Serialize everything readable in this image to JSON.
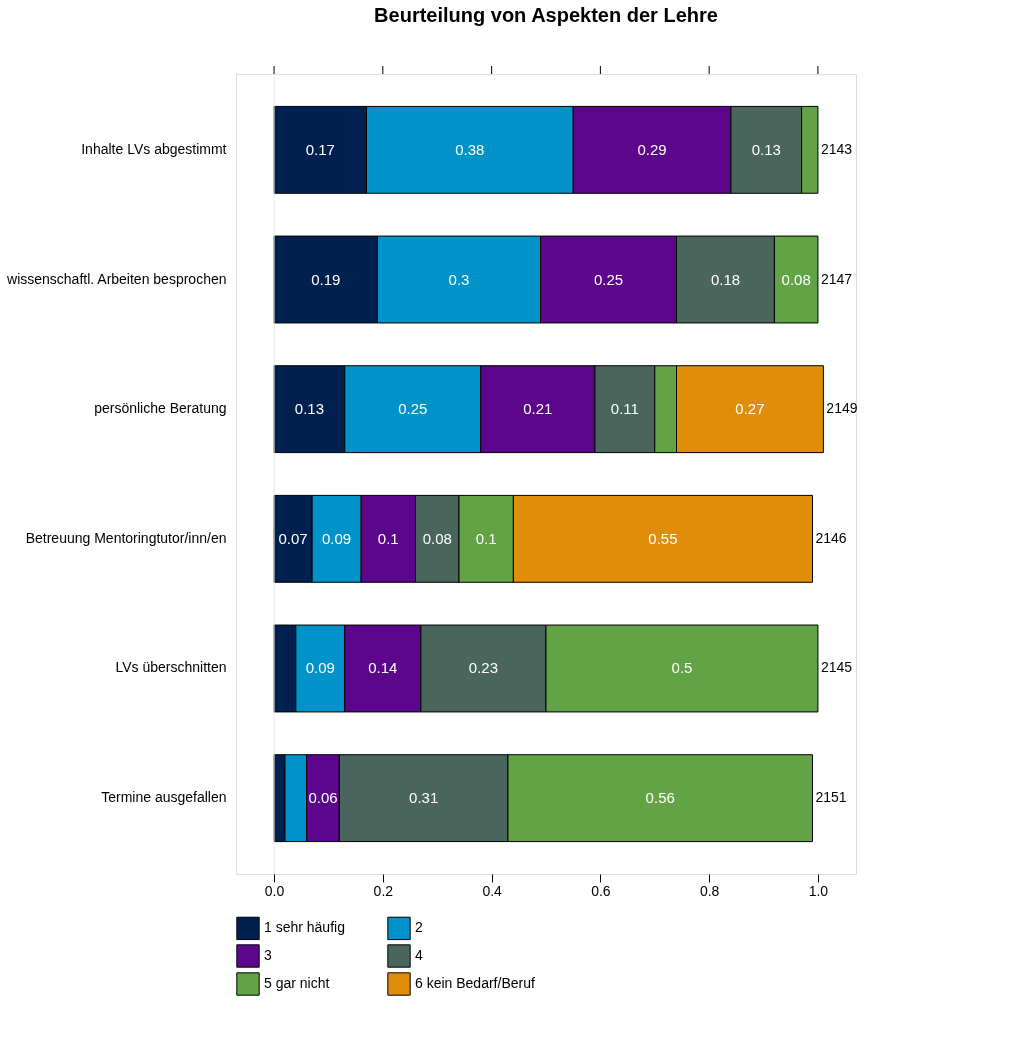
{
  "chart_data": {
    "type": "bar",
    "orientation": "horizontal",
    "stacked": true,
    "title": "Beurteilung von Aspekten der Lehre",
    "categories": [
      "Inhalte LVs abgestimmt",
      "wissenschaftl. Arbeiten besprochen",
      "persönliche Beratung",
      "Betreuung Mentoringtutor/inn/en",
      "LVs überschnitten",
      "Termine ausgefallen"
    ],
    "series": [
      {
        "name": "1 sehr häufig",
        "color": "#002050",
        "values": [
          0.17,
          0.19,
          0.13,
          0.07,
          0.04,
          0.02
        ],
        "value_labels": [
          "0.17",
          "0.19",
          "0.13",
          "0.07",
          null,
          null
        ]
      },
      {
        "name": "2",
        "color": "#0092c8",
        "values": [
          0.38,
          0.3,
          0.25,
          0.09,
          0.09,
          0.04
        ],
        "value_labels": [
          "0.38",
          "0.3",
          "0.25",
          "0.09",
          "0.09",
          null
        ]
      },
      {
        "name": "3",
        "color": "#5c068c",
        "values": [
          0.29,
          0.25,
          0.21,
          0.1,
          0.14,
          0.06
        ],
        "value_labels": [
          "0.29",
          "0.25",
          "0.21",
          "0.1",
          "0.14",
          "0.06"
        ]
      },
      {
        "name": "4",
        "color": "#4a665c",
        "values": [
          0.13,
          0.18,
          0.11,
          0.08,
          0.23,
          0.31
        ],
        "value_labels": [
          "0.13",
          "0.18",
          "0.11",
          "0.08",
          "0.23",
          "0.31"
        ]
      },
      {
        "name": "5 gar nicht",
        "color": "#62a346",
        "values": [
          0.03,
          0.08,
          0.04,
          0.1,
          0.5,
          0.56
        ],
        "value_labels": [
          null,
          "0.08",
          null,
          "0.1",
          "0.5",
          "0.56"
        ]
      },
      {
        "name": "6 kein Bedarf/Beruf",
        "color": "#e08e0a",
        "values": [
          0,
          0,
          0.27,
          0.55,
          0,
          0
        ],
        "value_labels": [
          null,
          null,
          "0.27",
          "0.55",
          null,
          null
        ]
      }
    ],
    "xlim": [
      -0.07,
      1.07
    ],
    "xticks": [
      {
        "value": 0,
        "label": "0.0"
      },
      {
        "value": 0.2,
        "label": "0.2"
      },
      {
        "value": 0.4,
        "label": "0.4"
      },
      {
        "value": 0.6,
        "label": "0.6"
      },
      {
        "value": 0.8,
        "label": "0.8"
      },
      {
        "value": 1,
        "label": "1.0"
      }
    ],
    "ref_lines": [
      {
        "axis": "x",
        "value": 0,
        "color": "#e6e6e6"
      }
    ],
    "annotations": [
      "2143",
      "2147",
      "2149",
      "2146",
      "2145",
      "2151"
    ],
    "grid": false,
    "legend": "bottom"
  }
}
